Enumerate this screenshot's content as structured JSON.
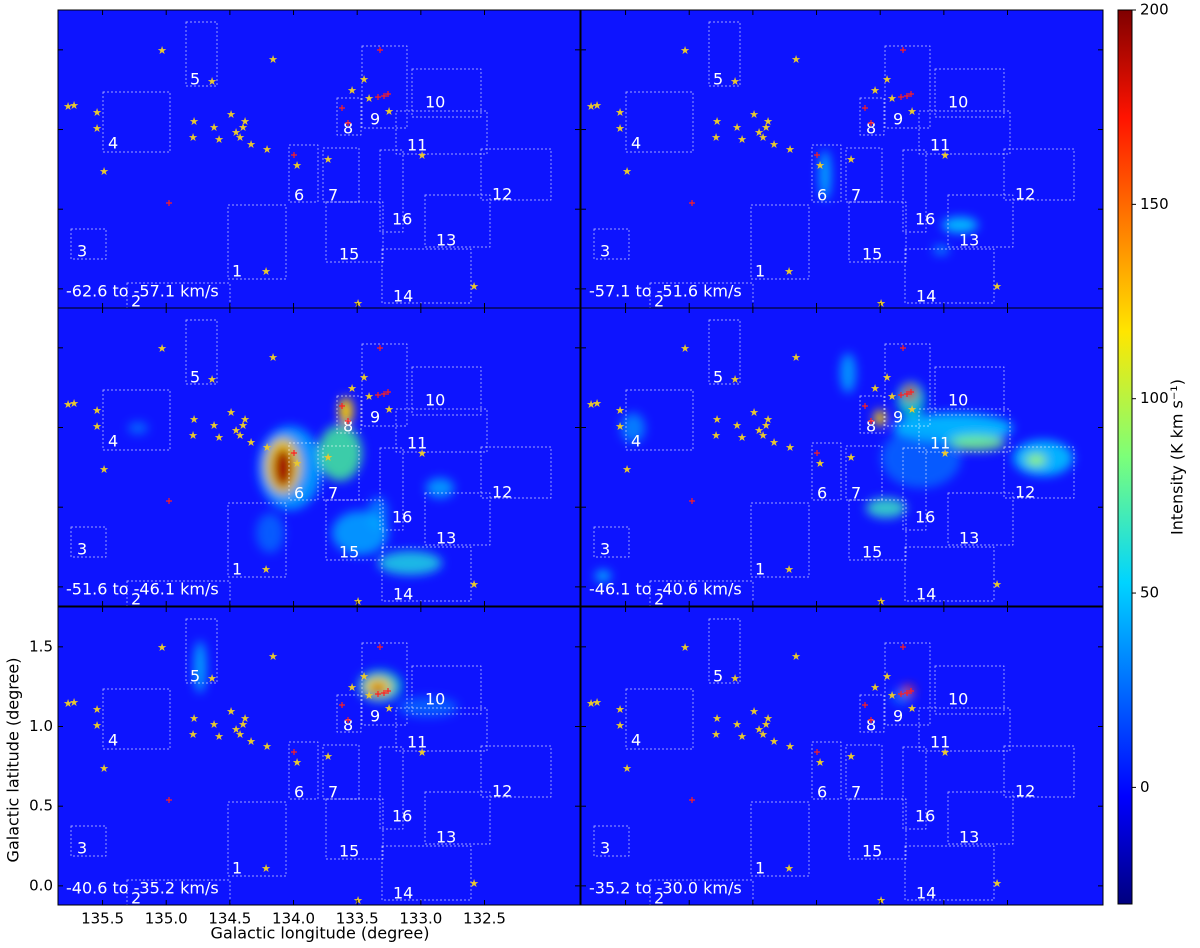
{
  "chart_data": {
    "type": "channel-map",
    "xlabel": "Galactic longitude (degree)",
    "ylabel": "Galactic latitude (degree)",
    "xlim": [
      135.85,
      131.75
    ],
    "ylim": [
      -0.12,
      1.75
    ],
    "xticks": [
      135.5,
      {
        "value": 135,
        "label": "135.0"
      },
      134.5,
      {
        "value": 134,
        "label": "134.0"
      },
      133.5,
      {
        "value": 133,
        "label": "133.0"
      },
      132.5
    ],
    "yticks": [
      {
        "value": 0,
        "label": "0.0"
      },
      0.5,
      {
        "value": 1,
        "label": "1.0"
      },
      1.5
    ],
    "panels": [
      "-62.6 to -57.1 km/s",
      "-57.1 to -51.6 km/s",
      "-51.6 to -46.1 km/s",
      "-46.1 to -40.6 km/s",
      "-40.6 to -35.2 km/s",
      "-35.2 to -30.0 km/s"
    ],
    "regions": [
      "1",
      "2",
      "3",
      "4",
      "5",
      "6",
      "7",
      "8",
      "9",
      "10",
      "11",
      "12",
      "13",
      "14",
      "15",
      "16"
    ],
    "colorbar": {
      "label": "Intensity (K km s⁻¹)",
      "lim": [
        -30,
        200
      ],
      "ticks": [
        0,
        50,
        100,
        150,
        200
      ]
    }
  }
}
